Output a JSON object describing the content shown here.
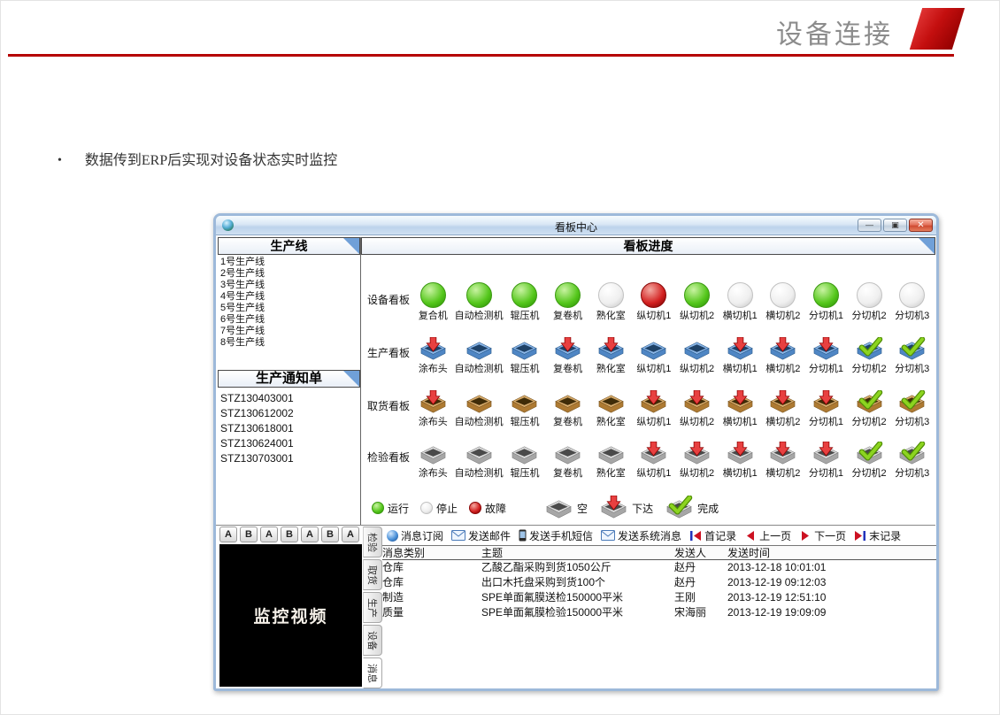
{
  "page": {
    "header_title": "设备连接",
    "bullet_marker": "•",
    "bullet_text": "数据传到ERP后实现对设备状态实时监控",
    "accent_color": "#b50000"
  },
  "window": {
    "title": "看板中心",
    "controls": [
      {
        "name": "minimize-button",
        "glyph": "—"
      },
      {
        "name": "maximize-button",
        "glyph": "▣"
      },
      {
        "name": "close-button",
        "glyph": "✕"
      }
    ]
  },
  "sidebar": {
    "production_lines": {
      "title": "生产线",
      "items": [
        "1号生产线",
        "2号生产线",
        "3号生产线",
        "4号生产线",
        "5号生产线",
        "6号生产线",
        "7号生产线",
        "8号生产线"
      ]
    },
    "notices": {
      "title": "生产通知单",
      "items": [
        "STZ130403001",
        "STZ130612002",
        "STZ130618001",
        "STZ130624001",
        "STZ130703001"
      ]
    }
  },
  "kanban": {
    "title": "看板进度",
    "rows": [
      {
        "label": "设备看板",
        "icon": "ball",
        "palette": "",
        "cells": [
          {
            "name": "复合机",
            "state": "green"
          },
          {
            "name": "自动检测机",
            "state": "green"
          },
          {
            "name": "辊压机",
            "state": "green"
          },
          {
            "name": "复卷机",
            "state": "green"
          },
          {
            "name": "熟化室",
            "state": "white"
          },
          {
            "name": "纵切机1",
            "state": "red"
          },
          {
            "name": "纵切机2",
            "state": "green"
          },
          {
            "name": "横切机1",
            "state": "white"
          },
          {
            "name": "横切机2",
            "state": "white"
          },
          {
            "name": "分切机1",
            "state": "green"
          },
          {
            "name": "分切机2",
            "state": "white"
          },
          {
            "name": "分切机3",
            "state": "white"
          }
        ]
      },
      {
        "label": "生产看板",
        "icon": "box",
        "palette": "blue",
        "cells": [
          {
            "name": "涂布头",
            "state": "arrow"
          },
          {
            "name": "自动检测机",
            "state": "empty"
          },
          {
            "name": "辊压机",
            "state": "empty"
          },
          {
            "name": "复卷机",
            "state": "arrow"
          },
          {
            "name": "熟化室",
            "state": "arrow"
          },
          {
            "name": "纵切机1",
            "state": "empty"
          },
          {
            "name": "纵切机2",
            "state": "empty"
          },
          {
            "name": "横切机1",
            "state": "arrow"
          },
          {
            "name": "横切机2",
            "state": "arrow"
          },
          {
            "name": "分切机1",
            "state": "arrow"
          },
          {
            "name": "分切机2",
            "state": "check"
          },
          {
            "name": "分切机3",
            "state": "check"
          }
        ]
      },
      {
        "label": "取货看板",
        "icon": "box",
        "palette": "tan",
        "cells": [
          {
            "name": "涂布头",
            "state": "arrow"
          },
          {
            "name": "自动检测机",
            "state": "empty"
          },
          {
            "name": "辊压机",
            "state": "empty"
          },
          {
            "name": "复卷机",
            "state": "empty"
          },
          {
            "name": "熟化室",
            "state": "empty"
          },
          {
            "name": "纵切机1",
            "state": "arrow"
          },
          {
            "name": "纵切机2",
            "state": "arrow"
          },
          {
            "name": "横切机1",
            "state": "arrow"
          },
          {
            "name": "横切机2",
            "state": "arrow"
          },
          {
            "name": "分切机1",
            "state": "arrow"
          },
          {
            "name": "分切机2",
            "state": "check"
          },
          {
            "name": "分切机3",
            "state": "check"
          }
        ]
      },
      {
        "label": "检验看板",
        "icon": "box",
        "palette": "gray",
        "cells": [
          {
            "name": "涂布头",
            "state": "empty"
          },
          {
            "name": "自动检测机",
            "state": "empty"
          },
          {
            "name": "辊压机",
            "state": "empty"
          },
          {
            "name": "复卷机",
            "state": "empty"
          },
          {
            "name": "熟化室",
            "state": "empty"
          },
          {
            "name": "纵切机1",
            "state": "arrow"
          },
          {
            "name": "纵切机2",
            "state": "arrow"
          },
          {
            "name": "横切机1",
            "state": "arrow"
          },
          {
            "name": "横切机2",
            "state": "arrow"
          },
          {
            "name": "分切机1",
            "state": "arrow"
          },
          {
            "name": "分切机2",
            "state": "check"
          },
          {
            "name": "分切机3",
            "state": "check"
          }
        ]
      }
    ],
    "legend": [
      {
        "icon": "ball-green",
        "label": "运行"
      },
      {
        "icon": "ball-white",
        "label": "停止"
      },
      {
        "icon": "ball-red",
        "label": "故障"
      },
      {
        "icon": "box-empty",
        "label": "空"
      },
      {
        "icon": "box-arrow",
        "label": "下达"
      },
      {
        "icon": "box-check",
        "label": "完成"
      }
    ],
    "status_colors": {
      "run": "#55c71c",
      "stop": "#efefef",
      "fault": "#d32020",
      "issue_arrow": "#e84040",
      "done_check": "#8cd420"
    }
  },
  "message_toolbar": {
    "buttons": [
      {
        "icon": "subscribe-icon",
        "label": "消息订阅"
      },
      {
        "icon": "mail-icon",
        "label": "发送邮件"
      },
      {
        "icon": "phone-icon",
        "label": "发送手机短信"
      },
      {
        "icon": "sysmsg-icon",
        "label": "发送系统消息"
      },
      {
        "icon": "first-record-icon",
        "label": "首记录"
      },
      {
        "icon": "prev-page-icon",
        "label": "上一页"
      },
      {
        "icon": "next-page-icon",
        "label": "下一页"
      },
      {
        "icon": "last-record-icon",
        "label": "末记录"
      }
    ]
  },
  "messages": {
    "columns": [
      "消息类别",
      "主题",
      "发送人",
      "发送时间"
    ],
    "rows": [
      [
        "仓库",
        "乙酸乙酯采购到货1050公斤",
        "赵丹",
        "2013-12-18 10:01:01"
      ],
      [
        "仓库",
        "出口木托盘采购到货100个",
        "赵丹",
        "2013-12-19 09:12:03"
      ],
      [
        "制造",
        "SPE单面氟膜送检150000平米",
        "王刚",
        "2013-12-19 12:51:10"
      ],
      [
        "质量",
        "SPE单面氟膜检验150000平米",
        "宋海丽",
        "2013-12-19 19:09:09"
      ]
    ]
  },
  "monitor": {
    "ab_buttons": [
      "A",
      "B",
      "A",
      "B",
      "A",
      "B",
      "A"
    ],
    "video_label": "监控视频",
    "tabs": [
      "检验",
      "取货",
      "生产",
      "设备",
      "消息"
    ],
    "active_tab": "消息"
  }
}
